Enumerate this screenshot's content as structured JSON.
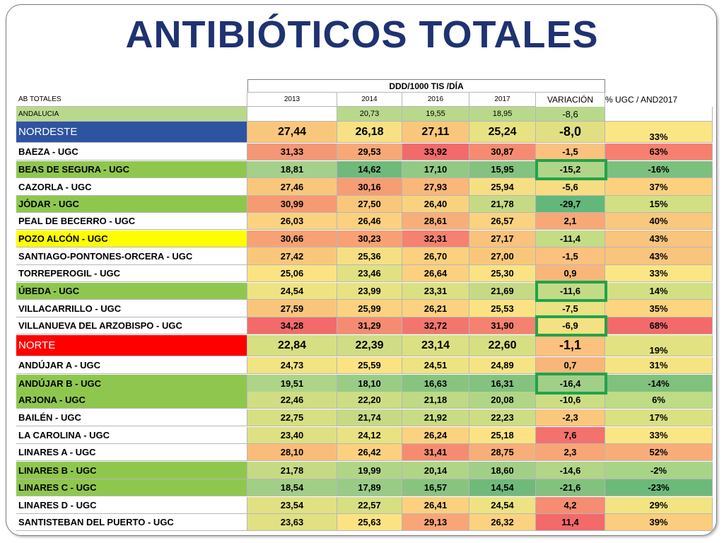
{
  "title": "ANTIBIÓTICOS TOTALES",
  "table": {
    "super_header": "DDD/1000 TIS /DÍA",
    "columns": [
      "AB TOTALES",
      "2013",
      "2014",
      "2016",
      "2017",
      "VARIACIÓN",
      "% UGC / AND2017"
    ],
    "rows": [
      {
        "name": "ANDALUCIA",
        "values": [
          "",
          "20,73",
          "19,55",
          "18,95",
          "-8,6",
          ""
        ],
        "name_color": "#b8d98c",
        "colors": [
          "#ffffff",
          "#b8d98c",
          "#b8d98c",
          "#b8d98c",
          "#b8d98c",
          "#ffffff"
        ]
      },
      {
        "name": "NORDESTE",
        "values": [
          "27,44",
          "26,18",
          "27,11",
          "25,24",
          "-8,0",
          "33%"
        ],
        "name_color": "#2e54a1",
        "colors": [
          "#f9c77c",
          "#f7e184",
          "#f9c77c",
          "#e7e282",
          "#e2df83",
          "#fbe685"
        ]
      },
      {
        "name": "BAEZA - UGC",
        "values": [
          "31,33",
          "29,53",
          "33,92",
          "30,87",
          "-1,5",
          "63%"
        ],
        "name_color": "#ffffff",
        "colors": [
          "#f49775",
          "#f8a877",
          "#f36a6b",
          "#f68b72",
          "#fbc17e",
          "#f77f70"
        ]
      },
      {
        "name": "BEAS DE SEGURA - UGC",
        "values": [
          "18,81",
          "14,62",
          "17,10",
          "15,95",
          "-15,2",
          "-16%"
        ],
        "name_color": "#8fc74e",
        "colors": [
          "#a5d08b",
          "#6fba7a",
          "#92c985",
          "#83c27f",
          "#b0d488",
          "#7cc07d"
        ]
      },
      {
        "name": "CAZORLA - UGC",
        "values": [
          "27,46",
          "30,16",
          "27,93",
          "25,94",
          "-5,6",
          "37%"
        ],
        "name_color": "#ffffff",
        "colors": [
          "#f9c77c",
          "#f69d73",
          "#f9b77a",
          "#f6df83",
          "#f8dc82",
          "#fbd17f"
        ]
      },
      {
        "name": "JÓDAR - UGC",
        "values": [
          "30,99",
          "27,50",
          "26,40",
          "21,78",
          "-29,7",
          "15%"
        ],
        "name_color": "#8fc74e",
        "colors": [
          "#f69a73",
          "#f9c77c",
          "#f9d280",
          "#c6da85",
          "#63b77a",
          "#d2e083"
        ]
      },
      {
        "name": "PEAL DE BECERRO - UGC",
        "values": [
          "26,03",
          "26,46",
          "28,61",
          "26,57",
          "2,1",
          "40%"
        ],
        "name_color": "#ffffff",
        "colors": [
          "#fbd280",
          "#fbd17f",
          "#f8ae78",
          "#fbd280",
          "#f8a877",
          "#fac87d"
        ]
      },
      {
        "name": "POZO ALCÓN - UGC",
        "values": [
          "30,66",
          "30,23",
          "32,31",
          "27,17",
          "-11,4",
          "43%"
        ],
        "name_color": "#ffff00",
        "colors": [
          "#f7a275",
          "#f7a175",
          "#f58170",
          "#f9c27d",
          "#c5dc86",
          "#f9c47d"
        ]
      },
      {
        "name": "SANTIAGO-PONTONES-ORCERA - UGC",
        "values": [
          "27,42",
          "25,36",
          "26,70",
          "27,00",
          "-1,5",
          "43%"
        ],
        "name_color": "#ffffff",
        "colors": [
          "#f9c77c",
          "#f6df83",
          "#fbd17f",
          "#f9c77c",
          "#fbc17e",
          "#f9c47d"
        ]
      },
      {
        "name": "TORREPEROGIL - UGC",
        "values": [
          "25,06",
          "23,46",
          "26,64",
          "25,30",
          "0,9",
          "33%"
        ],
        "name_color": "#ffffff",
        "colors": [
          "#fbe384",
          "#e1e183",
          "#fbd17f",
          "#fbe384",
          "#f9b67a",
          "#fbe685"
        ]
      },
      {
        "name": "ÚBEDA - UGC",
        "values": [
          "24,54",
          "23,99",
          "23,31",
          "21,69",
          "-11,6",
          "14%"
        ],
        "name_color": "#8fc74e",
        "colors": [
          "#eee383",
          "#e7e282",
          "#dbe083",
          "#c6da85",
          "#c3db86",
          "#d2e083"
        ]
      },
      {
        "name": "VILLACARRILLO - UGC",
        "values": [
          "27,59",
          "25,99",
          "26,21",
          "25,53",
          "-7,5",
          "35%"
        ],
        "name_color": "#ffffff",
        "colors": [
          "#f9c57c",
          "#fbd280",
          "#fbd280",
          "#fbe384",
          "#eae284",
          "#fbd580"
        ]
      },
      {
        "name": "VILLANUEVA DEL ARZOBISPO - UGC",
        "values": [
          "34,28",
          "31,29",
          "32,72",
          "31,90",
          "-6,9",
          "68%"
        ],
        "name_color": "#ffffff",
        "colors": [
          "#f36a6b",
          "#f58c72",
          "#f3766e",
          "#f58170",
          "#f3e183",
          "#f36a6b"
        ]
      },
      {
        "name": "NORTE",
        "values": [
          "22,84",
          "22,39",
          "23,14",
          "22,60",
          "-1,1",
          "19%"
        ],
        "name_color": "#ff0000",
        "colors": [
          "#d7df83",
          "#d0dd84",
          "#dbe083",
          "#d7df83",
          "#fbc17e",
          "#e2e283"
        ]
      },
      {
        "name": "ANDÚJAR A - UGC",
        "values": [
          "24,73",
          "25,59",
          "24,51",
          "24,89",
          "0,7",
          "31%"
        ],
        "name_color": "#ffffff",
        "colors": [
          "#f2e383",
          "#fbe384",
          "#eee383",
          "#f6e484",
          "#f9b67a",
          "#f6e484"
        ]
      },
      {
        "name": "ANDÚJAR B - UGC",
        "values": [
          "19,51",
          "18,10",
          "16,63",
          "16,31",
          "-16,4",
          "-14%"
        ],
        "name_color": "#8fc74e",
        "colors": [
          "#aed487",
          "#9acc86",
          "#88c480",
          "#83c27f",
          "#a1cf88",
          "#80c17e"
        ]
      },
      {
        "name": "ARJONA - UGC",
        "values": [
          "22,46",
          "22,20",
          "21,18",
          "20,08",
          "-10,6",
          "6%"
        ],
        "name_color": "#8fc74e",
        "colors": [
          "#d0dd84",
          "#cddd84",
          "#bfd986",
          "#b1d587",
          "#cbde85",
          "#bedb86"
        ]
      },
      {
        "name": "BAILÉN - UGC",
        "values": [
          "22,75",
          "21,74",
          "21,92",
          "22,23",
          "-2,3",
          "17%"
        ],
        "name_color": "#ffffff",
        "colors": [
          "#d7df83",
          "#c6da85",
          "#c9dc85",
          "#cddd84",
          "#fac87d",
          "#d9e183"
        ]
      },
      {
        "name": "LA CAROLINA - UGC",
        "values": [
          "23,40",
          "24,12",
          "26,24",
          "25,18",
          "7,6",
          "33%"
        ],
        "name_color": "#ffffff",
        "colors": [
          "#dee083",
          "#e9e282",
          "#fbd280",
          "#fbe384",
          "#f3726d",
          "#fbe685"
        ]
      },
      {
        "name": "LINARES A - UGC",
        "values": [
          "28,10",
          "26,42",
          "31,41",
          "28,75",
          "2,3",
          "52%"
        ],
        "name_color": "#ffffff",
        "colors": [
          "#f9bc7b",
          "#fbd17f",
          "#f58c72",
          "#f8ae78",
          "#f8a677",
          "#f8ad78"
        ]
      },
      {
        "name": "LINARES B - UGC",
        "values": [
          "21,78",
          "19,99",
          "20,14",
          "18,60",
          "-14,6",
          "-2%"
        ],
        "name_color": "#8fc74e",
        "colors": [
          "#c6da85",
          "#b1d587",
          "#b1d587",
          "#a1cf88",
          "#b2d588",
          "#a8d488"
        ]
      },
      {
        "name": "LINARES C - UGC",
        "values": [
          "18,54",
          "17,89",
          "16,57",
          "14,54",
          "-21,6",
          "-23%"
        ],
        "name_color": "#8fc74e",
        "colors": [
          "#a1cf88",
          "#98cb86",
          "#88c480",
          "#6fba7a",
          "#82c27e",
          "#6cba7a"
        ]
      },
      {
        "name": "LINARES D - UGC",
        "values": [
          "23,54",
          "22,57",
          "26,41",
          "24,54",
          "4,2",
          "29%"
        ],
        "name_color": "#ffffff",
        "colors": [
          "#e1e183",
          "#d7df83",
          "#fbd17f",
          "#eee383",
          "#f68c72",
          "#f2e483"
        ]
      },
      {
        "name": "SANTISTEBAN DEL PUERTO - UGC",
        "values": [
          "23,63",
          "25,63",
          "29,13",
          "26,32",
          "11,4",
          "39%"
        ],
        "name_color": "#ffffff",
        "colors": [
          "#e1e183",
          "#fbe384",
          "#f8a677",
          "#fbd280",
          "#f36a6b",
          "#fbcd7e"
        ]
      }
    ]
  },
  "highlighted_rows": [
    "BEAS DE SEGURA - UGC",
    "ÚBEDA - UGC",
    "VILLANUEVA DEL ARZOBISPO - UGC",
    "ANDÚJAR B - UGC"
  ],
  "colors": {
    "title": "#1f3271",
    "highlight_box": "#22a34a",
    "header_dark_text": "#ffffff"
  }
}
